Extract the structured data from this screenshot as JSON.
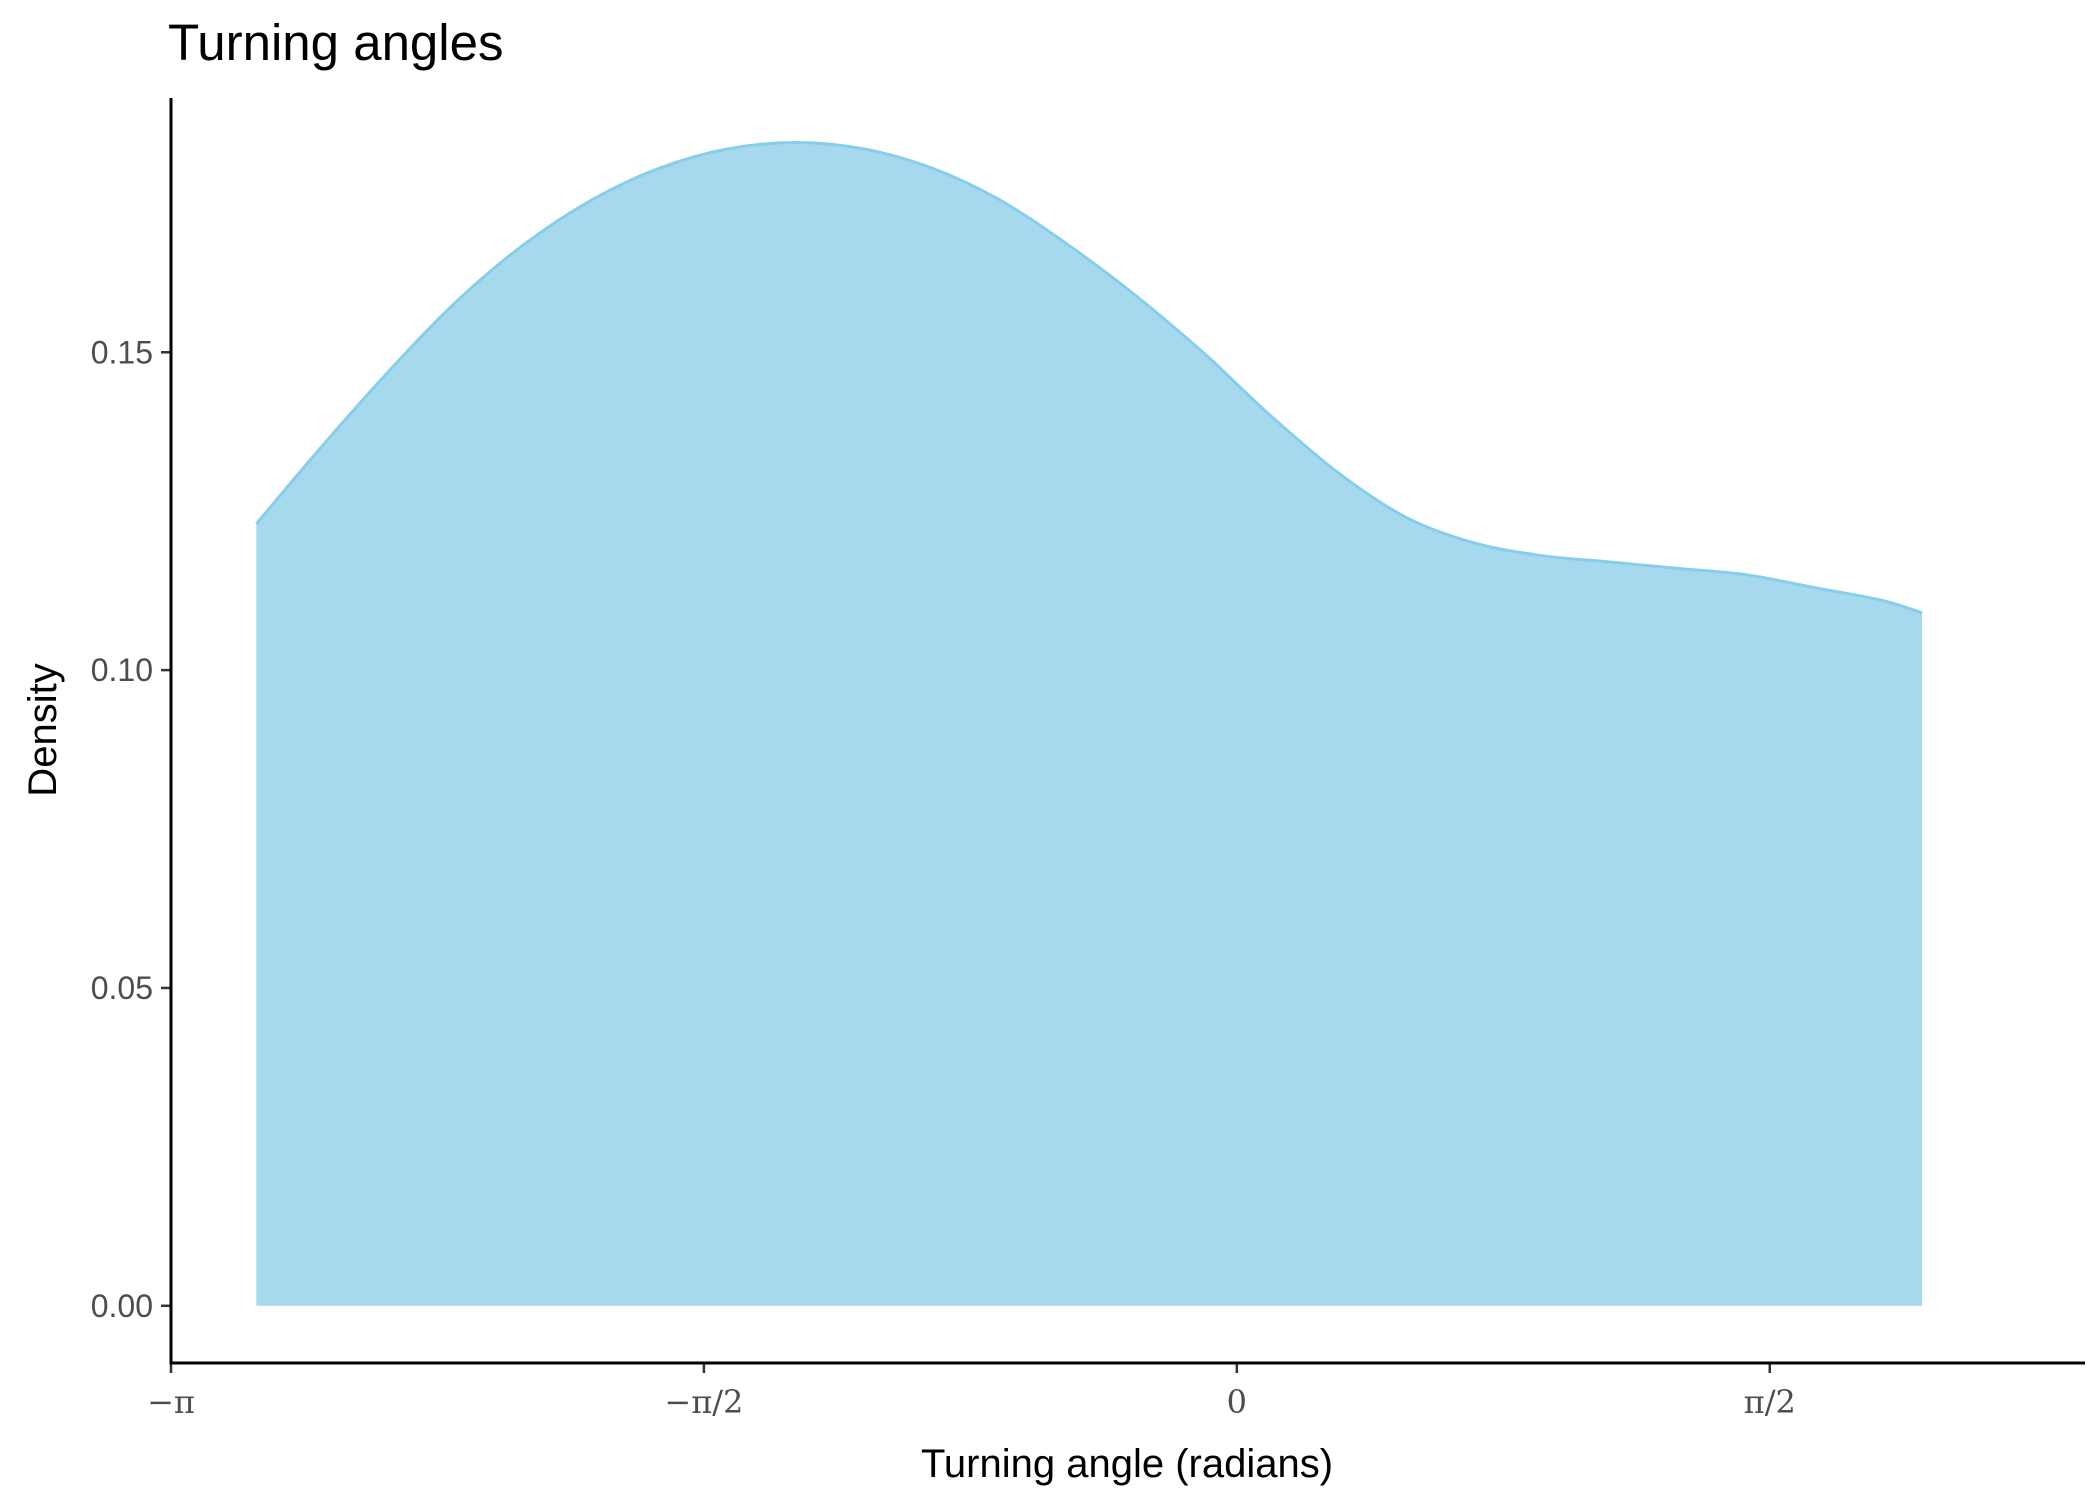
{
  "chart_data": {
    "type": "area",
    "title": "Turning angles",
    "xlabel": "Turning angle (radians)",
    "ylabel": "Density",
    "xlim": [
      -3.1416,
      2.5
    ],
    "ylim": [
      -0.009,
      0.19
    ],
    "x_ticks": [
      {
        "value": -3.1416,
        "label": "−π"
      },
      {
        "value": -1.5708,
        "label": "−π/2"
      },
      {
        "value": 0,
        "label": "0"
      },
      {
        "value": 1.5708,
        "label": "π/2"
      }
    ],
    "y_ticks": [
      {
        "value": 0.0,
        "label": "0.00"
      },
      {
        "value": 0.05,
        "label": "0.05"
      },
      {
        "value": 0.1,
        "label": "0.10"
      },
      {
        "value": 0.15,
        "label": "0.15"
      }
    ],
    "fill_color": "#a6d9ee",
    "line_color": "#87ceeb",
    "grid": false,
    "series": [
      {
        "x": [
          -2.89,
          -2.7,
          -2.5,
          -2.3,
          -2.1,
          -1.9,
          -1.7,
          -1.5,
          -1.3,
          -1.1,
          -0.9,
          -0.7,
          -0.5,
          -0.3,
          -0.1,
          0.0,
          0.1,
          0.3,
          0.5,
          0.7,
          0.9,
          1.1,
          1.3,
          1.5,
          1.7,
          1.9,
          2.02
        ],
        "y": [
          0.123,
          0.135,
          0.147,
          0.158,
          0.167,
          0.174,
          0.179,
          0.182,
          0.183,
          0.182,
          0.179,
          0.174,
          0.167,
          0.159,
          0.15,
          0.145,
          0.14,
          0.131,
          0.124,
          0.12,
          0.118,
          0.117,
          0.116,
          0.115,
          0.113,
          0.111,
          0.109
        ]
      }
    ]
  }
}
